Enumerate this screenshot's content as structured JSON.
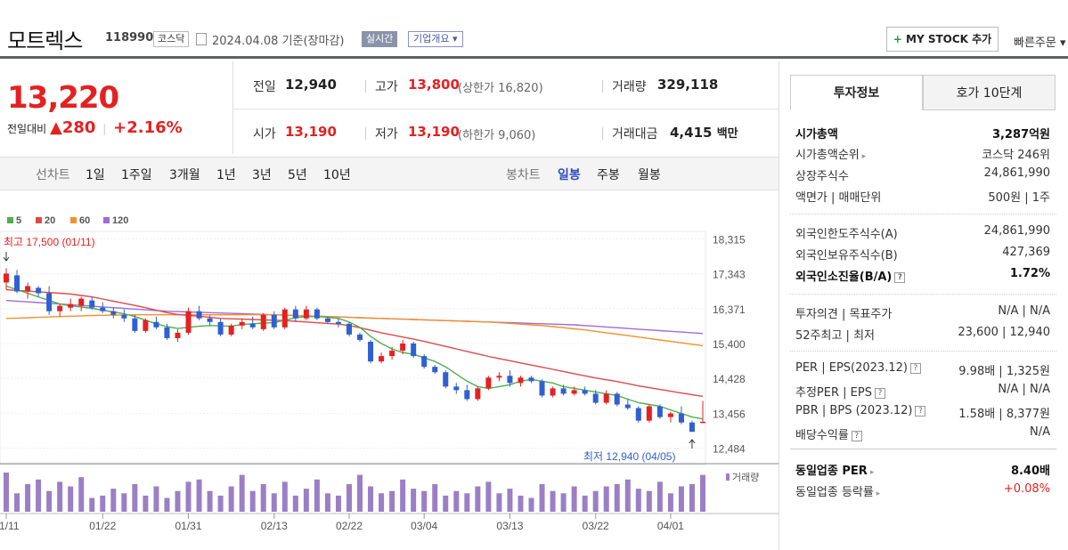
{
  "header": {
    "name": "모트렉스",
    "code": "118990",
    "market": "코스닥",
    "date": "2024.04.08  기준(장마감)",
    "realtime": "실시간",
    "company": "기업개요 ▾",
    "mystock": "MY STOCK 추가",
    "quick_order": "빠른주문 ▾"
  },
  "price": {
    "current": "13,220",
    "diff_label": "전일대비",
    "diff": "▲280",
    "rate": "+2.16%"
  },
  "quote": {
    "prev_label": "전일",
    "prev": "12,940",
    "high_label": "고가",
    "high": "13,800",
    "upper": "(상한가 16,820)",
    "volume_label": "거래량",
    "volume": "329,118",
    "open_label": "시가",
    "open": "13,190",
    "low_label": "저가",
    "low": "13,190",
    "lower": "(하한가 9,060)",
    "amount_label": "거래대금",
    "amount": "4,415",
    "amount_unit": "백만"
  },
  "toolbar": {
    "line_label": "선차트",
    "periods": [
      "1일",
      "1주일",
      "3개월",
      "1년",
      "3년",
      "5년",
      "10년"
    ],
    "candle_label": "봉차트",
    "candles": [
      "일봉",
      "주봉",
      "월봉"
    ]
  },
  "chart_data": {
    "type": "candlestick",
    "legend": [
      "5",
      "20",
      "60",
      "120"
    ],
    "ma_colors": {
      "5": "#4caf50",
      "20": "#e04848",
      "60": "#f0922a",
      "120": "#a06ad8"
    },
    "up_color": "#e42121",
    "down_color": "#2f5fd0",
    "y_ticks": [
      18315,
      17343,
      16371,
      15400,
      14428,
      13456,
      12484
    ],
    "ylim": [
      12200,
      18500
    ],
    "x_ticks": [
      "01/11",
      "01/22",
      "01/31",
      "02/13",
      "02/22",
      "03/04",
      "03/13",
      "03/22",
      "04/01"
    ],
    "x_tick_index": [
      0,
      9,
      17,
      25,
      32,
      39,
      47,
      55,
      62
    ],
    "high_annotation": "최고 17,500 (01/11)",
    "low_annotation": "최저 12,940 (04/05)",
    "volume_label": "거래량",
    "candles": [
      [
        17100,
        17500,
        16900,
        17350
      ],
      [
        17300,
        17450,
        16800,
        16850
      ],
      [
        16850,
        17100,
        16650,
        17000
      ],
      [
        16950,
        17000,
        16700,
        16800
      ],
      [
        16800,
        17000,
        16200,
        16300
      ],
      [
        16300,
        16500,
        16150,
        16450
      ],
      [
        16400,
        16650,
        16300,
        16500
      ],
      [
        16450,
        16700,
        16300,
        16650
      ],
      [
        16600,
        16700,
        16350,
        16400
      ],
      [
        16400,
        16550,
        16250,
        16300
      ],
      [
        16300,
        16400,
        16100,
        16200
      ],
      [
        16200,
        16350,
        16000,
        16100
      ],
      [
        16100,
        16200,
        15700,
        15750
      ],
      [
        15750,
        16100,
        15700,
        16050
      ],
      [
        16000,
        16150,
        15800,
        15850
      ],
      [
        15850,
        15950,
        15500,
        15550
      ],
      [
        15550,
        15800,
        15450,
        15700
      ],
      [
        15700,
        16400,
        15650,
        16300
      ],
      [
        16300,
        16450,
        16050,
        16100
      ],
      [
        16100,
        16200,
        15900,
        16000
      ],
      [
        16000,
        16100,
        15600,
        15650
      ],
      [
        15650,
        15950,
        15600,
        15900
      ],
      [
        15900,
        16100,
        15800,
        16000
      ],
      [
        15950,
        16150,
        15800,
        15850
      ],
      [
        15800,
        16250,
        15750,
        16200
      ],
      [
        16200,
        16300,
        15800,
        15850
      ],
      [
        15850,
        16400,
        15800,
        16350
      ],
      [
        16350,
        16450,
        16000,
        16100
      ],
      [
        16100,
        16450,
        16050,
        16350
      ],
      [
        16350,
        16400,
        16050,
        16100
      ],
      [
        16100,
        16150,
        15950,
        16000
      ],
      [
        16000,
        16100,
        15850,
        15950
      ],
      [
        15950,
        16000,
        15600,
        15650
      ],
      [
        15650,
        15700,
        15450,
        15500
      ],
      [
        15450,
        15500,
        14850,
        14900
      ],
      [
        14900,
        15150,
        14850,
        15050
      ],
      [
        15050,
        15300,
        14950,
        15200
      ],
      [
        15200,
        15500,
        15100,
        15400
      ],
      [
        15400,
        15450,
        15000,
        15050
      ],
      [
        15050,
        15100,
        14700,
        14750
      ],
      [
        14750,
        14800,
        14550,
        14600
      ],
      [
        14600,
        14650,
        14150,
        14200
      ],
      [
        14200,
        14300,
        14000,
        14100
      ],
      [
        14100,
        14250,
        13800,
        13850
      ],
      [
        13850,
        14200,
        13800,
        14150
      ],
      [
        14150,
        14500,
        14100,
        14450
      ],
      [
        14450,
        14600,
        14350,
        14500
      ],
      [
        14500,
        14650,
        14200,
        14300
      ],
      [
        14300,
        14500,
        14200,
        14450
      ],
      [
        14450,
        14500,
        14300,
        14350
      ],
      [
        14350,
        14400,
        13900,
        13950
      ],
      [
        13950,
        14200,
        13900,
        14150
      ],
      [
        14150,
        14250,
        13950,
        14000
      ],
      [
        14000,
        14200,
        13950,
        14100
      ],
      [
        14100,
        14200,
        13950,
        14000
      ],
      [
        14000,
        14100,
        13700,
        13750
      ],
      [
        13750,
        14100,
        13700,
        14000
      ],
      [
        14000,
        14050,
        13650,
        13700
      ],
      [
        13700,
        13850,
        13550,
        13600
      ],
      [
        13600,
        13650,
        13200,
        13250
      ],
      [
        13250,
        13700,
        13200,
        13650
      ],
      [
        13650,
        13700,
        13300,
        13350
      ],
      [
        13350,
        13500,
        13200,
        13450
      ],
      [
        13450,
        13650,
        13150,
        13200
      ],
      [
        13200,
        13250,
        12940,
        12940
      ],
      [
        13190,
        13800,
        13190,
        13220
      ]
    ],
    "ma5": [
      17000,
      16900,
      16800,
      16700,
      16600,
      16500,
      16450,
      16420,
      16380,
      16330,
      16280,
      16230,
      16150,
      16050,
      15950,
      15870,
      15820,
      15850,
      15880,
      15900,
      15890,
      15880,
      15930,
      15950,
      15970,
      15980,
      16050,
      16120,
      16150,
      16150,
      16130,
      16100,
      16000,
      15850,
      15600,
      15400,
      15250,
      15150,
      15100,
      15000,
      14900,
      14750,
      14550,
      14350,
      14200,
      14150,
      14200,
      14250,
      14350,
      14400,
      14350,
      14300,
      14200,
      14150,
      14100,
      14050,
      14000,
      13950,
      13850,
      13750,
      13700,
      13650,
      13550,
      13450,
      13350,
      13300
    ],
    "ma20": [
      16900,
      16880,
      16860,
      16840,
      16820,
      16800,
      16780,
      16740,
      16700,
      16640,
      16580,
      16520,
      16460,
      16400,
      16330,
      16260,
      16210,
      16180,
      16160,
      16130,
      16100,
      16090,
      16080,
      16070,
      16060,
      16050,
      16040,
      16020,
      16000,
      15980,
      15960,
      15940,
      15900,
      15840,
      15770,
      15700,
      15640,
      15580,
      15520,
      15460,
      15390,
      15320,
      15250,
      15180,
      15110,
      15040,
      14980,
      14920,
      14860,
      14800,
      14740,
      14680,
      14620,
      14560,
      14500,
      14440,
      14390,
      14340,
      14280,
      14220,
      14170,
      14120,
      14070,
      14020,
      13970,
      13930
    ],
    "ma60": [
      16100,
      16110,
      16120,
      16130,
      16140,
      16150,
      16160,
      16170,
      16180,
      16185,
      16190,
      16195,
      16200,
      16200,
      16200,
      16200,
      16200,
      16200,
      16200,
      16200,
      16200,
      16200,
      16200,
      16200,
      16200,
      16200,
      16190,
      16180,
      16170,
      16160,
      16150,
      16140,
      16130,
      16120,
      16110,
      16100,
      16090,
      16080,
      16070,
      16060,
      16050,
      16040,
      16030,
      16020,
      16010,
      16000,
      15980,
      15960,
      15940,
      15920,
      15900,
      15870,
      15840,
      15810,
      15780,
      15740,
      15700,
      15660,
      15620,
      15580,
      15540,
      15500,
      15460,
      15420,
      15380,
      15340
    ],
    "ma120": [
      16600,
      16580,
      16560,
      16540,
      16520,
      16500,
      16480,
      16460,
      16440,
      16420,
      16400,
      16380,
      16360,
      16340,
      16320,
      16300,
      16290,
      16280,
      16270,
      16260,
      16250,
      16240,
      16230,
      16220,
      16210,
      16200,
      16190,
      16180,
      16170,
      16160,
      16150,
      16140,
      16130,
      16120,
      16110,
      16100,
      16090,
      16080,
      16070,
      16060,
      16050,
      16040,
      16030,
      16020,
      16010,
      16000,
      15990,
      15980,
      15970,
      15960,
      15950,
      15940,
      15930,
      15920,
      15900,
      15880,
      15860,
      15840,
      15820,
      15800,
      15780,
      15760,
      15740,
      15720,
      15700,
      15680
    ],
    "volumes": [
      85,
      40,
      60,
      70,
      45,
      65,
      55,
      75,
      30,
      35,
      50,
      40,
      60,
      35,
      55,
      30,
      45,
      65,
      70,
      45,
      35,
      55,
      80,
      45,
      60,
      40,
      65,
      35,
      50,
      70,
      40,
      35,
      60,
      80,
      55,
      40,
      45,
      70,
      50,
      45,
      60,
      35,
      45,
      40,
      55,
      65,
      40,
      50,
      35,
      30,
      60,
      45,
      40,
      55,
      35,
      45,
      55,
      60,
      70,
      50,
      45,
      65,
      40,
      55,
      60,
      80
    ]
  },
  "right": {
    "tab1": "투자정보",
    "tab2": "호가 10단계",
    "rows": [
      {
        "l": "시가총액",
        "r": "3,287억원"
      },
      {
        "l": "시가총액순위",
        "r": "코스닥 246위"
      },
      {
        "l": "상장주식수",
        "r": "24,861,990"
      },
      {
        "l": "액면가 | 매매단위",
        "r": "500원 | 1주"
      },
      {
        "l": "외국인한도주식수(A)",
        "r": "24,861,990"
      },
      {
        "l": "외국인보유주식수(B)",
        "r": "427,369"
      },
      {
        "l": "외국인소진율(B/A)",
        "r": "1.72%"
      },
      {
        "l": "투자의견 | 목표주가",
        "r": "N/A | N/A"
      },
      {
        "l": "52주최고 | 최저",
        "r": "23,600 | 12,940"
      },
      {
        "l": "PER | EPS(2023.12)",
        "r": "9.98배 | 1,325원"
      },
      {
        "l": "추정PER | EPS",
        "r": "N/A | N/A"
      },
      {
        "l": "PBR | BPS (2023.12)",
        "r": "1.58배 | 8,377원"
      },
      {
        "l": "배당수익률",
        "r": "N/A"
      },
      {
        "l": "동일업종 PER",
        "r": "8.40배"
      },
      {
        "l": "동일업종 등락률",
        "r": "+0.08%"
      }
    ]
  }
}
